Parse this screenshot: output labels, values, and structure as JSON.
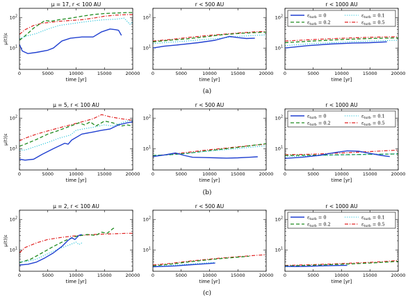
{
  "figure": {
    "sublabels": [
      "(a)",
      "(b)",
      "(c)"
    ],
    "xlabel": "time [yr]",
    "ylabel": "μ(t)|ε",
    "xticks": [
      "0",
      "5000",
      "10000",
      "15000",
      "20000"
    ],
    "legend_title_prefix": "ε",
    "legend_sub": "turb",
    "legend_entries": [
      {
        "name": "εturb = 0",
        "label_value": "= 0",
        "color": "#1f3fd0",
        "style": "solid"
      },
      {
        "name": "εturb = 0.1",
        "label_value": "= 0.1",
        "color": "#19c0d8",
        "style": "dotted"
      },
      {
        "name": "εturb = 0.2",
        "label_value": "= 0.2",
        "color": "#1e8a1e",
        "style": "dashed"
      },
      {
        "name": "εturb = 0.5",
        "label_value": "= 0.5",
        "color": "#e02020",
        "style": "dashdot"
      }
    ]
  },
  "chart_data": [
    {
      "type": "line",
      "panel": "a-1",
      "title": "μ = 17, r < 100 AU",
      "xlim": [
        0,
        20000
      ],
      "ylim": [
        2,
        200
      ],
      "yscale": "log",
      "yticks": [
        {
          "base": "10",
          "exp": "1",
          "v": 10
        },
        {
          "base": "10",
          "exp": "2",
          "v": 100
        }
      ],
      "series": [
        {
          "name": "εturb = 0",
          "x": [
            0,
            500,
            1500,
            3000,
            5000,
            6000,
            7500,
            9000,
            11000,
            13000,
            14500,
            16000,
            17000,
            17500,
            18000
          ],
          "y": [
            13,
            8,
            6.6,
            7.2,
            8.5,
            10,
            17,
            21,
            23,
            23,
            34,
            42,
            40,
            38,
            26
          ]
        },
        {
          "name": "εturb = 0.1",
          "x": [
            0,
            1000,
            3000,
            5000,
            7000,
            9000,
            11000,
            13000,
            15000,
            17000,
            18500,
            19500,
            20000
          ],
          "y": [
            20,
            24,
            30,
            42,
            55,
            62,
            70,
            78,
            85,
            88,
            95,
            60,
            70
          ]
        },
        {
          "name": "εturb = 0.2",
          "x": [
            0,
            1000,
            2500,
            3500,
            4500,
            5500,
            7000,
            9000,
            11000,
            13000,
            15000,
            17000,
            19000,
            20000
          ],
          "y": [
            18,
            25,
            45,
            60,
            80,
            75,
            85,
            95,
            110,
            125,
            135,
            140,
            145,
            145
          ]
        },
        {
          "name": "εturb = 0.5",
          "x": [
            0,
            1000,
            2500,
            4000,
            5500,
            7000,
            9000,
            11000,
            13000,
            15000,
            17000,
            19000,
            20000
          ],
          "y": [
            28,
            40,
            55,
            65,
            70,
            75,
            80,
            85,
            95,
            110,
            120,
            125,
            125
          ]
        }
      ]
    },
    {
      "type": "line",
      "panel": "a-2",
      "title": "r < 500 AU",
      "xlim": [
        0,
        20000
      ],
      "ylim": [
        2,
        200
      ],
      "yscale": "log",
      "yticks": [
        {
          "base": "10",
          "exp": "1",
          "v": 10
        },
        {
          "base": "10",
          "exp": "2",
          "v": 100
        }
      ],
      "series": [
        {
          "name": "εturb = 0",
          "x": [
            0,
            2000,
            5000,
            8000,
            11000,
            13500,
            15000,
            16500,
            18000
          ],
          "y": [
            10,
            11.5,
            13,
            15,
            18,
            24,
            22,
            20.5,
            21
          ]
        },
        {
          "name": "εturb = 0.1",
          "x": [
            0,
            3000,
            6000,
            9000,
            12000,
            15000,
            18000,
            20000
          ],
          "y": [
            14,
            15.5,
            17,
            19,
            21,
            24,
            26,
            27
          ]
        },
        {
          "name": "εturb = 0.2",
          "x": [
            0,
            3000,
            6000,
            9000,
            12000,
            15000,
            18000,
            20000
          ],
          "y": [
            16,
            18,
            20,
            23,
            27,
            30,
            32,
            33
          ]
        },
        {
          "name": "εturb = 0.5",
          "x": [
            0,
            3000,
            6000,
            9000,
            12000,
            15000,
            18000,
            20000
          ],
          "y": [
            17,
            19,
            22,
            25,
            28,
            31,
            34,
            35
          ]
        }
      ]
    },
    {
      "type": "line",
      "panel": "a-3",
      "title": "r < 1000 AU",
      "xlim": [
        0,
        20000
      ],
      "ylim": [
        2,
        200
      ],
      "yscale": "log",
      "legend": "top-left",
      "yticks": [
        {
          "base": "10",
          "exp": "1",
          "v": 10
        },
        {
          "base": "10",
          "exp": "2",
          "v": 100
        }
      ],
      "series": [
        {
          "name": "εturb = 0",
          "x": [
            0,
            4000,
            8000,
            12000,
            15000,
            18000
          ],
          "y": [
            10,
            12,
            13.5,
            14.5,
            15,
            16
          ]
        },
        {
          "name": "εturb = 0.1",
          "x": [
            0,
            5000,
            10000,
            15000,
            20000
          ],
          "y": [
            12,
            14,
            15.5,
            17,
            18
          ]
        },
        {
          "name": "εturb = 0.2",
          "x": [
            0,
            5000,
            10000,
            15000,
            20000
          ],
          "y": [
            15,
            17,
            19,
            20.5,
            21.5
          ]
        },
        {
          "name": "εturb = 0.5",
          "x": [
            0,
            5000,
            10000,
            15000,
            20000
          ],
          "y": [
            17,
            19,
            21,
            22.5,
            23.5
          ]
        }
      ]
    },
    {
      "type": "line",
      "panel": "b-1",
      "title": "μ = 5, r < 100 AU",
      "xlim": [
        0,
        20000
      ],
      "ylim": [
        2,
        200
      ],
      "yscale": "log",
      "yticks": [
        {
          "base": "10",
          "exp": "1",
          "v": 10
        },
        {
          "base": "10",
          "exp": "2",
          "v": 100
        }
      ],
      "series": [
        {
          "name": "εturb = 0",
          "x": [
            0,
            1000,
            2500,
            4000,
            6000,
            8000,
            8600,
            9200,
            11000,
            13000,
            14500,
            16000,
            17500,
            19000,
            20000
          ],
          "y": [
            4.5,
            4.2,
            4.5,
            6.5,
            10,
            15,
            14,
            19,
            30,
            35,
            40,
            44,
            60,
            70,
            75
          ]
        },
        {
          "name": "εturb = 0.1",
          "x": [
            0,
            1000,
            3000,
            5000,
            7000,
            9000,
            10000,
            11500,
            13000,
            15000,
            16500,
            18000,
            19000,
            20000
          ],
          "y": [
            9,
            9,
            12,
            16,
            22,
            28,
            40,
            45,
            50,
            60,
            55,
            70,
            80,
            85
          ]
        },
        {
          "name": "εturb = 0.2",
          "x": [
            0,
            1000,
            3000,
            5000,
            7000,
            9000,
            10500,
            11500,
            12500,
            13500,
            15000,
            16500,
            18000,
            19000,
            20000
          ],
          "y": [
            12,
            14,
            20,
            30,
            40,
            55,
            70,
            60,
            75,
            55,
            80,
            70,
            55,
            60,
            55
          ]
        },
        {
          "name": "εturb = 0.5",
          "x": [
            0,
            1000,
            3000,
            5000,
            7000,
            9000,
            11000,
            13000,
            14500,
            16000,
            18000,
            20000
          ],
          "y": [
            18,
            22,
            30,
            38,
            48,
            60,
            75,
            95,
            130,
            110,
            95,
            85
          ]
        }
      ]
    },
    {
      "type": "line",
      "panel": "b-2",
      "title": "r < 500 AU",
      "xlim": [
        0,
        20000
      ],
      "ylim": [
        2,
        200
      ],
      "yscale": "log",
      "yticks": [
        {
          "base": "10",
          "exp": "1",
          "v": 10
        },
        {
          "base": "10",
          "exp": "2",
          "v": 100
        }
      ],
      "series": [
        {
          "name": "εturb = 0",
          "x": [
            0,
            2000,
            4000,
            5500,
            7000,
            9000,
            11000,
            13000,
            15000,
            17000,
            18500
          ],
          "y": [
            5.5,
            6.2,
            7.2,
            6,
            5.2,
            5.1,
            5,
            4.9,
            5,
            5.2,
            5.4
          ]
        },
        {
          "name": "εturb = 0.1",
          "x": [
            0,
            3000,
            6000,
            9000,
            12000,
            15000,
            18000,
            20000
          ],
          "y": [
            6,
            6.3,
            7,
            8,
            9,
            10,
            11.5,
            12.5
          ]
        },
        {
          "name": "εturb = 0.2",
          "x": [
            0,
            3000,
            6000,
            9000,
            12000,
            15000,
            18000,
            20000
          ],
          "y": [
            6,
            6.3,
            7,
            8.2,
            9.5,
            11,
            13,
            14.5
          ]
        },
        {
          "name": "εturb = 0.5",
          "x": [
            0,
            3000,
            6000,
            9000,
            12000,
            15000,
            18000,
            20000
          ],
          "y": [
            5.8,
            6.5,
            7.5,
            8.8,
            10,
            11.5,
            13,
            14
          ]
        }
      ]
    },
    {
      "type": "line",
      "panel": "b-3",
      "title": "r < 1000 AU",
      "xlim": [
        0,
        20000
      ],
      "ylim": [
        2,
        200
      ],
      "yscale": "log",
      "legend": "top-left",
      "yticks": [
        {
          "base": "10",
          "exp": "1",
          "v": 10
        },
        {
          "base": "10",
          "exp": "2",
          "v": 100
        }
      ],
      "series": [
        {
          "name": "εturb = 0",
          "x": [
            0,
            3000,
            6000,
            9000,
            11000,
            13000,
            15000,
            17000,
            18500
          ],
          "y": [
            4.8,
            5.2,
            6,
            7.5,
            8.5,
            8.2,
            7,
            6,
            5.5
          ]
        },
        {
          "name": "εturb = 0.1",
          "x": [
            0,
            5000,
            10000,
            15000,
            20000
          ],
          "y": [
            5.5,
            5.8,
            6.2,
            6.5,
            6.8
          ]
        },
        {
          "name": "εturb = 0.2",
          "x": [
            0,
            5000,
            10000,
            15000,
            20000
          ],
          "y": [
            6,
            6.1,
            6.3,
            6.5,
            6.7
          ]
        },
        {
          "name": "εturb = 0.5",
          "x": [
            0,
            5000,
            10000,
            15000,
            20000
          ],
          "y": [
            6.3,
            6.6,
            7.2,
            8,
            9
          ]
        }
      ]
    },
    {
      "type": "line",
      "panel": "c-1",
      "title": "μ = 2, r < 100 AU",
      "xlim": [
        0,
        20000
      ],
      "ylim": [
        2,
        200
      ],
      "yscale": "log",
      "yticks": [
        {
          "base": "10",
          "exp": "1",
          "v": 10
        },
        {
          "base": "10",
          "exp": "2",
          "v": 100
        }
      ],
      "series": [
        {
          "name": "εturb = 0",
          "x": [
            0,
            1500,
            3000,
            4500,
            6000,
            7500,
            8500,
            9200,
            9800,
            10500,
            11000
          ],
          "y": [
            3.2,
            3.4,
            4,
            5.5,
            8,
            13,
            20,
            25,
            22,
            30,
            32
          ]
        },
        {
          "name": "εturb = 0.1",
          "x": [
            0,
            1500,
            3000,
            5000,
            7000,
            9000,
            10000,
            10500,
            11000
          ],
          "y": [
            4,
            4.3,
            5,
            7.5,
            11,
            15,
            18,
            15,
            17
          ]
        },
        {
          "name": "εturb = 0.2",
          "x": [
            0,
            2000,
            4000,
            6000,
            8000,
            10000,
            12000,
            13500,
            14500,
            15500,
            16500,
            17000
          ],
          "y": [
            3.8,
            5,
            8,
            13,
            20,
            28,
            32,
            30,
            38,
            35,
            50,
            55
          ]
        },
        {
          "name": "εturb = 0.5",
          "x": [
            0,
            1000,
            3000,
            5000,
            7000,
            9000,
            11000,
            13000,
            15000,
            17000,
            19000,
            20000
          ],
          "y": [
            8,
            12,
            17,
            22,
            25,
            28,
            30,
            32,
            33,
            34,
            35,
            35
          ]
        }
      ]
    },
    {
      "type": "line",
      "panel": "c-2",
      "title": "r < 500 AU",
      "xlim": [
        0,
        20000
      ],
      "ylim": [
        2,
        200
      ],
      "yscale": "log",
      "yticks": [
        {
          "base": "10",
          "exp": "1",
          "v": 10
        },
        {
          "base": "10",
          "exp": "2",
          "v": 100
        }
      ],
      "series": [
        {
          "name": "εturb = 0",
          "x": [
            0,
            2000,
            4000,
            6000,
            8000,
            10000,
            11000
          ],
          "y": [
            2.8,
            2.9,
            3,
            3.2,
            3.4,
            3.6,
            3.7
          ]
        },
        {
          "name": "εturb = 0.1",
          "x": [
            0,
            2000,
            4000,
            6000,
            8000,
            10000,
            11000
          ],
          "y": [
            2.9,
            3,
            3.2,
            3.4,
            3.6,
            3.8,
            3.9
          ]
        },
        {
          "name": "εturb = 0.2",
          "x": [
            0,
            3000,
            6000,
            9000,
            12000,
            15000,
            17000
          ],
          "y": [
            3,
            3.4,
            4,
            4.6,
            5.2,
            5.8,
            6.2
          ]
        },
        {
          "name": "εturb = 0.5",
          "x": [
            0,
            3000,
            6000,
            9000,
            12000,
            15000,
            18000,
            20000
          ],
          "y": [
            3.2,
            3.6,
            4.2,
            4.8,
            5.4,
            6,
            6.6,
            7
          ]
        }
      ]
    },
    {
      "type": "line",
      "panel": "c-3",
      "title": "r < 1000 AU",
      "xlim": [
        0,
        20000
      ],
      "ylim": [
        2,
        200
      ],
      "yscale": "log",
      "legend": "top-left",
      "yticks": [
        {
          "base": "10",
          "exp": "1",
          "v": 10
        },
        {
          "base": "10",
          "exp": "2",
          "v": 100
        }
      ],
      "series": [
        {
          "name": "εturb = 0",
          "x": [
            0,
            2000,
            4000,
            6000,
            8000,
            10000,
            11000
          ],
          "y": [
            2.9,
            2.85,
            2.9,
            3,
            3.05,
            3.1,
            3.1
          ]
        },
        {
          "name": "εturb = 0.1",
          "x": [
            0,
            2000,
            4000,
            6000,
            8000,
            10000,
            11000
          ],
          "y": [
            2.8,
            2.85,
            2.9,
            3,
            3.05,
            3.1,
            3.15
          ]
        },
        {
          "name": "εturb = 0.2",
          "x": [
            0,
            4000,
            8000,
            12000,
            16000,
            20000
          ],
          "y": [
            3,
            3.1,
            3.3,
            3.5,
            3.8,
            4.2
          ]
        },
        {
          "name": "εturb = 0.5",
          "x": [
            0,
            4000,
            8000,
            12000,
            16000,
            20000
          ],
          "y": [
            3.1,
            3.25,
            3.45,
            3.7,
            4,
            4.5
          ]
        }
      ]
    }
  ]
}
